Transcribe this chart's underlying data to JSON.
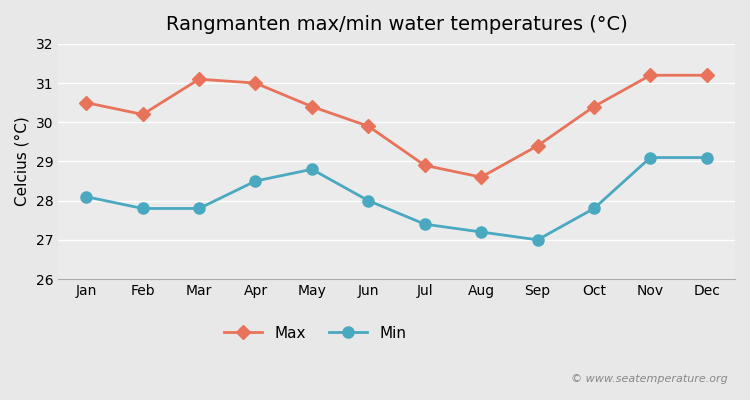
{
  "title": "Rangmanten max/min water temperatures (°C)",
  "ylabel": "Celcius (°C)",
  "months": [
    "Jan",
    "Feb",
    "Mar",
    "Apr",
    "May",
    "Jun",
    "Jul",
    "Aug",
    "Sep",
    "Oct",
    "Nov",
    "Dec"
  ],
  "max_temps": [
    30.5,
    30.2,
    31.1,
    31.0,
    30.4,
    29.9,
    28.9,
    28.6,
    29.4,
    30.4,
    31.2,
    31.2
  ],
  "min_temps": [
    28.1,
    27.8,
    27.8,
    28.5,
    28.8,
    28.0,
    27.4,
    27.2,
    27.0,
    27.8,
    29.1,
    29.1
  ],
  "max_color": "#e8735a",
  "min_color": "#4aa8c0",
  "background_color": "#e8e8e8",
  "plot_bg_color": "#ebebeb",
  "grid_color": "#ffffff",
  "ylim": [
    26,
    32
  ],
  "yticks": [
    26,
    27,
    28,
    29,
    30,
    31,
    32
  ],
  "title_fontsize": 14,
  "axis_fontsize": 11,
  "tick_fontsize": 10,
  "legend_fontsize": 11,
  "watermark": "© www.seatemperature.org",
  "marker_max": "D",
  "marker_min": "o",
  "linewidth": 2.0,
  "markersize_max": 7,
  "markersize_min": 8
}
